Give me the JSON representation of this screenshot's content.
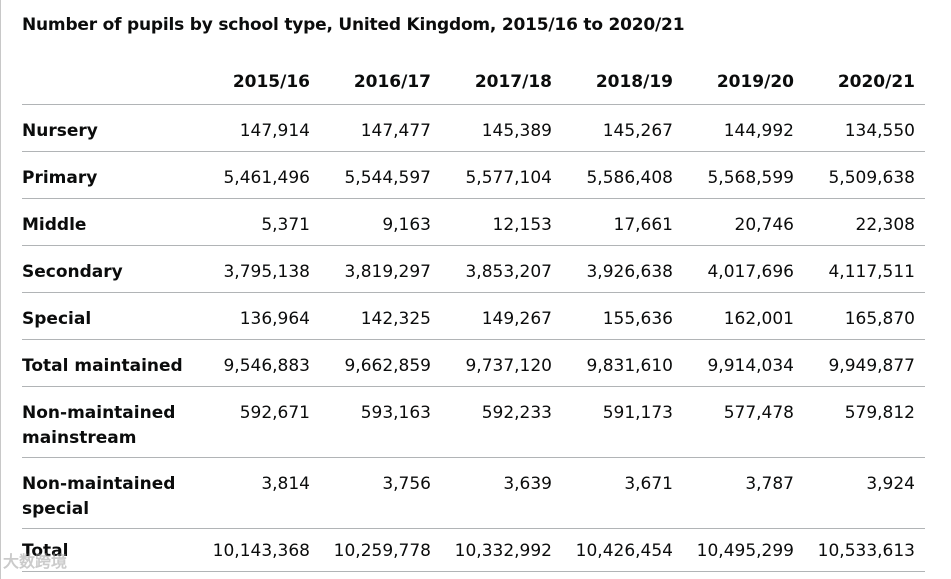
{
  "caption": "Number of pupils by school type, United Kingdom, 2015/16 to 2020/21",
  "table": {
    "headers": [
      "",
      "2015/16",
      "2016/17",
      "2017/18",
      "2018/19",
      "2019/20",
      "2020/21"
    ],
    "rows": [
      {
        "label": "Nursery",
        "values": [
          "147,914",
          "147,477",
          "145,389",
          "145,267",
          "144,992",
          "134,550"
        ]
      },
      {
        "label": "Primary",
        "values": [
          "5,461,496",
          "5,544,597",
          "5,577,104",
          "5,586,408",
          "5,568,599",
          "5,509,638"
        ]
      },
      {
        "label": "Middle",
        "values": [
          "5,371",
          "9,163",
          "12,153",
          "17,661",
          "20,746",
          "22,308"
        ]
      },
      {
        "label": "Secondary",
        "values": [
          "3,795,138",
          "3,819,297",
          "3,853,207",
          "3,926,638",
          "4,017,696",
          "4,117,511"
        ]
      },
      {
        "label": "Special",
        "values": [
          "136,964",
          "142,325",
          "149,267",
          "155,636",
          "162,001",
          "165,870"
        ]
      },
      {
        "label": "Total maintained",
        "values": [
          "9,546,883",
          "9,662,859",
          "9,737,120",
          "9,831,610",
          "9,914,034",
          "9,949,877"
        ]
      },
      {
        "label": "Non-maintained mainstream",
        "values": [
          "592,671",
          "593,163",
          "592,233",
          "591,173",
          "577,478",
          "579,812"
        ]
      },
      {
        "label": "Non-maintained special",
        "values": [
          "3,814",
          "3,756",
          "3,639",
          "3,671",
          "3,787",
          "3,924"
        ]
      },
      {
        "label": "Total",
        "values": [
          "10,143,368",
          "10,259,778",
          "10,332,992",
          "10,426,454",
          "10,495,299",
          "10,533,613"
        ]
      }
    ]
  },
  "watermark": "大数跨境"
}
